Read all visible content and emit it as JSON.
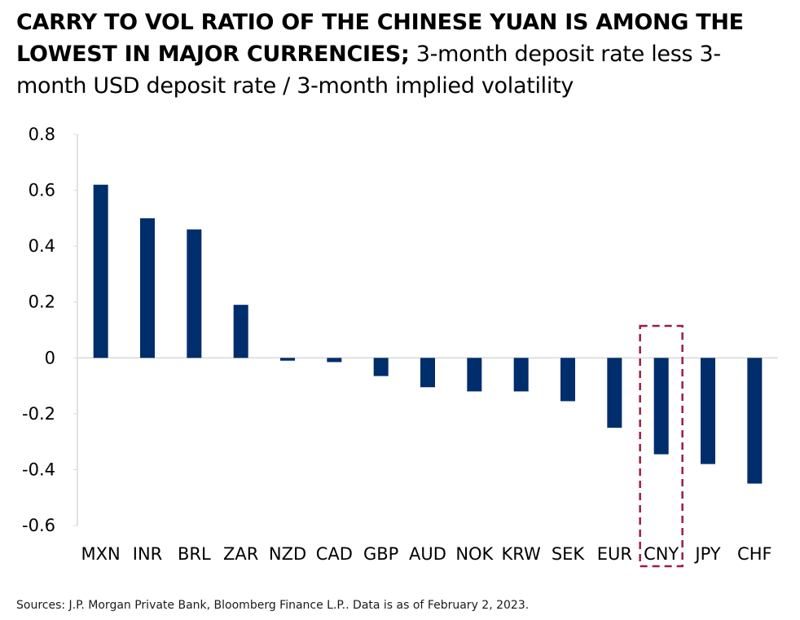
{
  "title": {
    "bold": "CARRY TO VOL RATIO OF THE CHINESE YUAN IS AMONG THE LOWEST IN MAJOR CURRENCIES;",
    "normal": " 3-month deposit rate less 3-month USD deposit rate / 3-month implied volatility"
  },
  "source": "Sources: J.P. Morgan Private Bank, Bloomberg Finance L.P.. Data is as of February 2, 2023.",
  "colors": {
    "bar": "#002d6b",
    "highlight": "#9b1b4a",
    "axis": "#d9d9d9"
  },
  "chart_data": {
    "type": "bar",
    "categories": [
      "MXN",
      "INR",
      "BRL",
      "ZAR",
      "NZD",
      "CAD",
      "GBP",
      "AUD",
      "NOK",
      "KRW",
      "SEK",
      "EUR",
      "CNY",
      "JPY",
      "CHF"
    ],
    "values": [
      0.62,
      0.5,
      0.46,
      0.19,
      -0.01,
      -0.015,
      -0.065,
      -0.105,
      -0.12,
      -0.12,
      -0.155,
      -0.25,
      -0.345,
      -0.38,
      -0.45
    ],
    "yticks": [
      "0.8",
      "0.6",
      "0.4",
      "0.2",
      "0",
      "-0.2",
      "-0.4",
      "-0.6"
    ],
    "ylim": [
      -0.6,
      0.8
    ],
    "highlighted_category": "CNY",
    "grid": false,
    "legend": "none"
  }
}
